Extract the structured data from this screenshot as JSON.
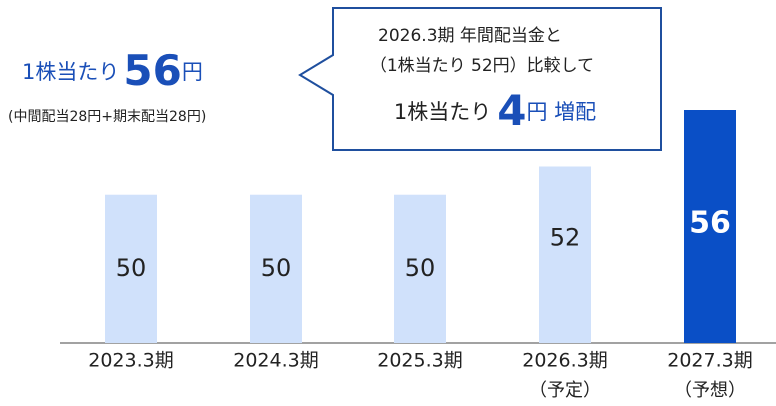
{
  "chart_data": {
    "type": "bar",
    "headline": {
      "prefix": "1株当たり",
      "amount": "56",
      "unit": "円",
      "note": "(中間配当28円+期末配当28円)"
    },
    "callout": {
      "line1": "2026.3期 年間配当金と",
      "line2": "（1株当たり 52円）比較して",
      "prefix": "1株当たり",
      "amount": "4",
      "unit": "円 増配"
    },
    "categories": [
      "2023.3期",
      "2024.3期",
      "2025.3期",
      "2026.3期",
      "2027.3期"
    ],
    "category_notes": [
      null,
      null,
      null,
      "（予定）",
      "（予想）"
    ],
    "values": [
      50,
      50,
      50,
      52,
      56
    ],
    "colors": [
      "#d0e1fb",
      "#d0e1fb",
      "#d0e1fb",
      "#d0e1fb",
      "#0a4fc6"
    ],
    "ylim": [
      39.5,
      56
    ]
  }
}
